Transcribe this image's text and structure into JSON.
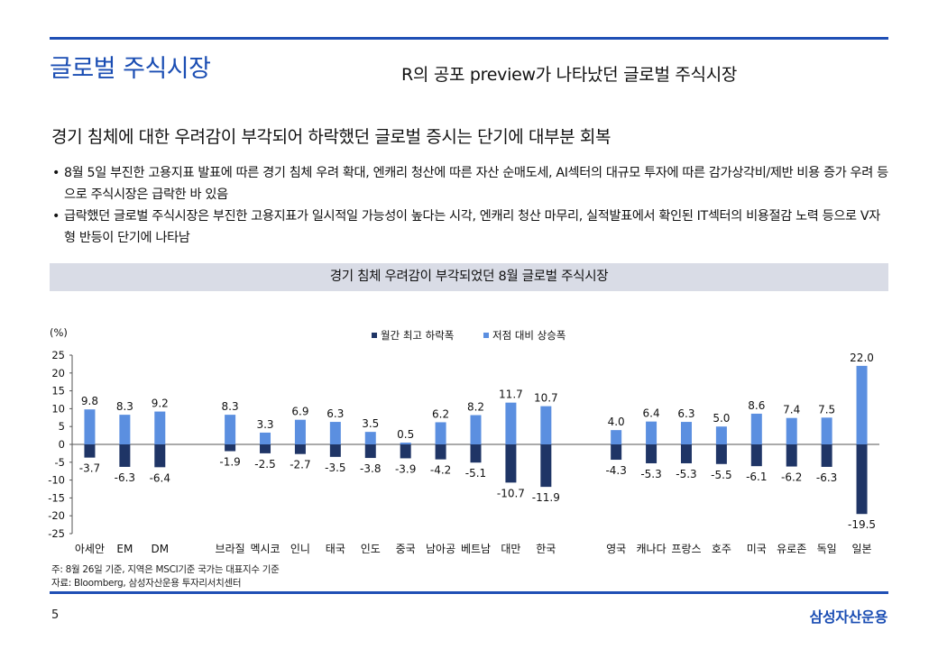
{
  "header": {
    "section_title": "글로벌 주식시장",
    "subtitle": "R의 공포 preview가 나타났던 글로벌 주식시장"
  },
  "headline": "경기 침체에 대한 우려감이 부각되어 하락했던 글로벌 증시는 단기에 대부분 회복",
  "bullets": [
    {
      "marker": "•",
      "text": "8월 5일 부진한 고용지표 발표에 따른 경기 침체 우려 확대, 엔캐리 청산에 따른 자산 순매도세, AI섹터의 대규모 투자에 따른 감가상각비/제반 비용 증가 우려 등으로 주식시장은 급락한 바 있음"
    },
    {
      "marker": "•",
      "text": "급락했던 글로벌 주식시장은 부진한 고용지표가 일시적일 가능성이 높다는 시각, 엔캐리 청산 마무리, 실적발표에서 확인된 IT섹터의 비용절감 노력 등으로 V자형 반등이 단기에 나타남"
    }
  ],
  "banner": "경기 침체 우려감이 부각되었던 8월 글로벌 주식시장",
  "chart_data": {
    "type": "bar",
    "title": "",
    "ylabel": "(%)",
    "xlabel": "",
    "ylim": [
      -25,
      25
    ],
    "yticks": [
      25,
      20,
      15,
      10,
      5,
      0,
      -5,
      -10,
      -15,
      -20,
      -25
    ],
    "grid": false,
    "legend_position": "top-center",
    "categories": [
      "아세안",
      "EM",
      "DM",
      "",
      "브라질",
      "멕시코",
      "인니",
      "태국",
      "인도",
      "중국",
      "남아공",
      "베트남",
      "대만",
      "한국",
      "",
      "영국",
      "캐나다",
      "프랑스",
      "호주",
      "미국",
      "유로존",
      "독일",
      "일본"
    ],
    "series": [
      {
        "name": "월간 최고 하락폭",
        "color": "#1f3566",
        "values": [
          -3.7,
          -6.3,
          -6.4,
          null,
          -1.9,
          -2.5,
          -2.7,
          -3.5,
          -3.8,
          -3.9,
          -4.2,
          -5.1,
          -10.7,
          -11.9,
          null,
          -4.3,
          -5.3,
          -5.3,
          -5.5,
          -6.1,
          -6.2,
          -6.3,
          -19.5
        ]
      },
      {
        "name": "저점 대비 상승폭",
        "color": "#5b8fe0",
        "values": [
          9.8,
          8.3,
          9.2,
          null,
          8.3,
          3.3,
          6.9,
          6.3,
          3.5,
          0.5,
          6.2,
          8.2,
          11.7,
          10.7,
          null,
          4.0,
          6.4,
          6.3,
          5.0,
          8.6,
          7.4,
          7.5,
          22.0
        ]
      }
    ]
  },
  "source": {
    "note": "주: 8월 26일 기준, 지역은 MSCI기준 국가는 대표지수 기준",
    "credit": "자료: Bloomberg, 삼성자산운용 투자리서치센터"
  },
  "footer": {
    "page_number": "5",
    "brand": "삼성자산운용"
  },
  "colors": {
    "accent": "#1f4fb5",
    "banner_bg": "#d9dce6"
  }
}
